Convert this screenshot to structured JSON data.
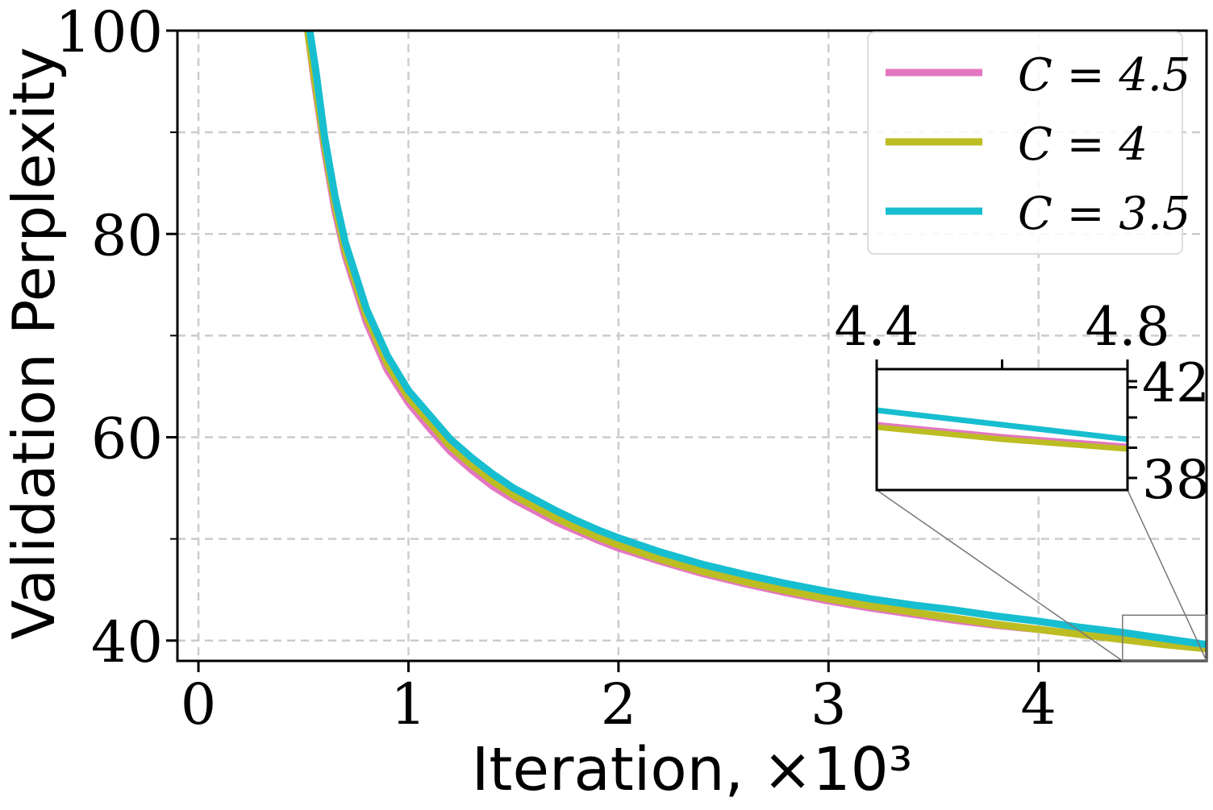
{
  "chart_data": {
    "type": "line",
    "xlabel": "Iteration, ×10³",
    "ylabel": "Validation Perplexity",
    "xlim": [
      -0.1,
      4.8
    ],
    "ylim": [
      38,
      100
    ],
    "xticks": [
      0,
      1,
      2,
      3,
      4
    ],
    "xtick_labels": [
      "0",
      "1",
      "2",
      "3",
      "4"
    ],
    "yticks": [
      40,
      60,
      80,
      100
    ],
    "ytick_labels": [
      "40",
      "60",
      "80",
      "100"
    ],
    "yminor": [
      50,
      70,
      90
    ],
    "grid": true,
    "legend": "top-right",
    "series": [
      {
        "name": "C = 4.5",
        "color": "#e377c2",
        "x": [
          0.52,
          0.55,
          0.6,
          0.65,
          0.7,
          0.8,
          0.9,
          1.0,
          1.1,
          1.2,
          1.3,
          1.4,
          1.5,
          1.6,
          1.7,
          1.8,
          1.9,
          2.0,
          2.2,
          2.4,
          2.6,
          2.8,
          3.0,
          3.2,
          3.4,
          3.6,
          3.8,
          4.0,
          4.2,
          4.4,
          4.6,
          4.8
        ],
        "y": [
          100,
          95.3,
          88.3,
          82.3,
          77.8,
          71.3,
          66.6,
          63.4,
          60.9,
          58.6,
          56.8,
          55.2,
          53.9,
          52.8,
          51.7,
          50.8,
          49.9,
          49.1,
          47.8,
          46.6,
          45.6,
          44.7,
          43.9,
          43.2,
          42.6,
          42.0,
          41.5,
          41.1,
          40.6,
          40.2,
          39.7,
          39.3
        ]
      },
      {
        "name": "C = 4",
        "color": "#bcbd22",
        "x": [
          0.52,
          0.55,
          0.6,
          0.65,
          0.7,
          0.8,
          0.9,
          1.0,
          1.1,
          1.2,
          1.3,
          1.4,
          1.5,
          1.6,
          1.7,
          1.8,
          1.9,
          2.0,
          2.2,
          2.4,
          2.6,
          2.8,
          3.0,
          3.2,
          3.4,
          3.6,
          3.8,
          4.0,
          4.2,
          4.4,
          4.6,
          4.8
        ],
        "y": [
          100,
          95.7,
          88.8,
          82.9,
          78.3,
          71.9,
          67.2,
          63.9,
          61.5,
          59.1,
          57.3,
          55.7,
          54.3,
          53.2,
          52.1,
          51.1,
          50.2,
          49.4,
          48.0,
          46.8,
          45.8,
          44.9,
          44.1,
          43.4,
          42.8,
          42.2,
          41.6,
          41.1,
          40.6,
          40.1,
          39.6,
          39.2
        ]
      },
      {
        "name": "C = 3.5",
        "color": "#17becf",
        "x": [
          0.53,
          0.56,
          0.6,
          0.65,
          0.7,
          0.8,
          0.9,
          1.0,
          1.1,
          1.2,
          1.3,
          1.4,
          1.5,
          1.6,
          1.7,
          1.8,
          1.9,
          2.0,
          2.2,
          2.4,
          2.6,
          2.8,
          3.0,
          3.2,
          3.4,
          3.6,
          3.8,
          4.0,
          4.2,
          4.4,
          4.6,
          4.8
        ],
        "y": [
          100,
          95.9,
          89.6,
          83.7,
          79.1,
          72.6,
          68.0,
          64.6,
          62.2,
          59.8,
          58.0,
          56.4,
          55.0,
          53.9,
          52.8,
          51.8,
          50.9,
          50.1,
          48.7,
          47.5,
          46.5,
          45.6,
          44.8,
          44.1,
          43.5,
          43.0,
          42.4,
          41.9,
          41.3,
          40.8,
          40.2,
          39.6
        ]
      }
    ],
    "inset": {
      "xlim": [
        4.4,
        4.8
      ],
      "ylim": [
        37.5,
        42.5
      ],
      "xticks": [
        4.4,
        4.6,
        4.8
      ],
      "xtick_labels": [
        "4.4",
        "",
        "4.8"
      ],
      "yticks": [
        38,
        39.25,
        40.5,
        41.75,
        42
      ],
      "ytick_labels": [
        "38",
        "",
        "",
        "",
        "42"
      ]
    }
  }
}
